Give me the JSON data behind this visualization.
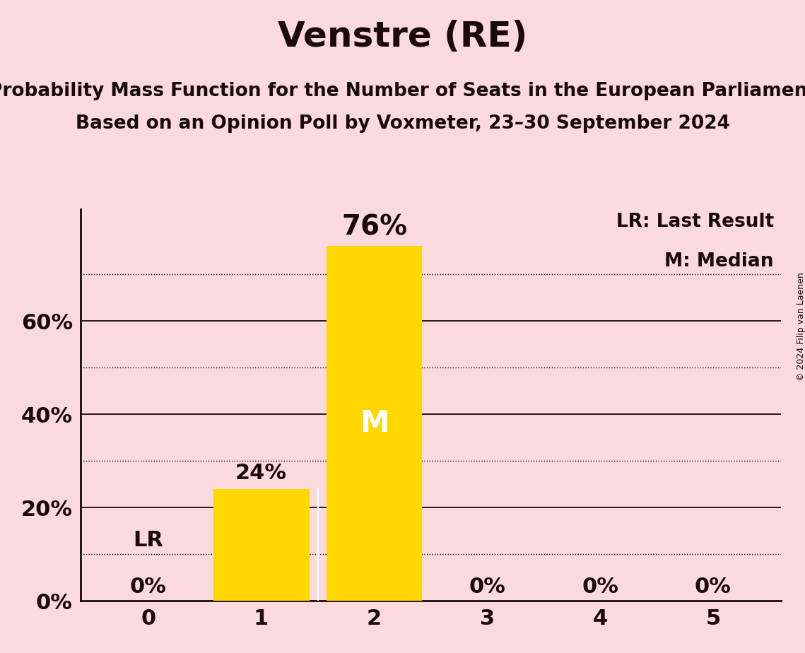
{
  "title": "Venstre (RE)",
  "subtitle1": "Probability Mass Function for the Number of Seats in the European Parliament",
  "subtitle2": "Based on an Opinion Poll by Voxmeter, 23–30 September 2024",
  "categories": [
    0,
    1,
    2,
    3,
    4,
    5
  ],
  "values": [
    0.0,
    0.24,
    0.76,
    0.0,
    0.0,
    0.0
  ],
  "bar_color": "#FFD700",
  "background_color": "#FADADD",
  "title_color": "#1a0a0a",
  "bar_label_color_outside": "#1a0a0a",
  "bar_label_color_inside": "#ffffff",
  "lr_seat": 0,
  "median_seat": 2,
  "legend_lr": "LR: Last Result",
  "legend_m": "M: Median",
  "copyright": "© 2024 Filip van Laenen",
  "ylim": [
    0,
    0.84
  ],
  "yticks": [
    0.0,
    0.2,
    0.4,
    0.6
  ],
  "ytick_labels": [
    "0%",
    "20%",
    "40%",
    "60%"
  ],
  "solid_gridlines": [
    0.2,
    0.4,
    0.6
  ],
  "dotted_gridlines": [
    0.1,
    0.3,
    0.5,
    0.7
  ],
  "title_fontsize": 36,
  "subtitle_fontsize": 19,
  "tick_fontsize": 22,
  "bar_label_fontsize_small": 22,
  "bar_label_fontsize_large": 28,
  "legend_fontsize": 19,
  "lr_fontsize": 22,
  "m_fontsize": 30,
  "copyright_fontsize": 9
}
